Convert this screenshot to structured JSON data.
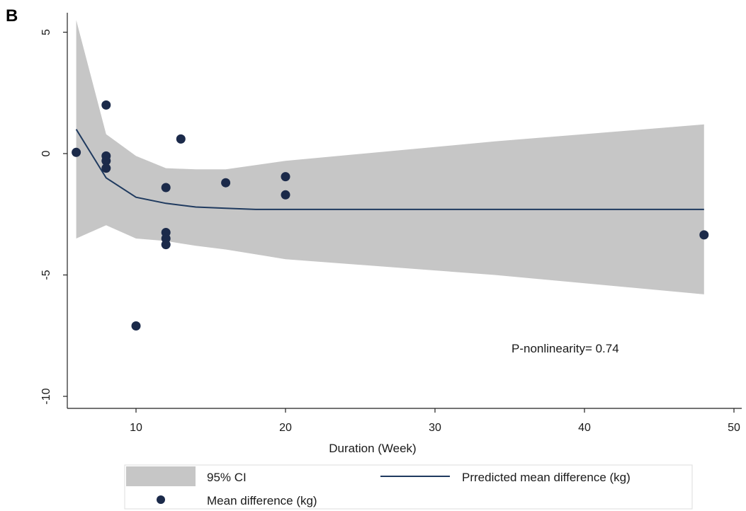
{
  "panel_label": "B",
  "chart_data": {
    "type": "line",
    "xlabel": "Duration (Week)",
    "ylabel": "",
    "xlim": [
      5,
      50
    ],
    "ylim": [
      -10.5,
      5.8
    ],
    "x_ticks": [
      10,
      20,
      30,
      40,
      50
    ],
    "y_ticks": [
      5,
      0,
      -5,
      -10
    ],
    "grid": false,
    "legend_position": "bottom",
    "ci_band": {
      "name": "95% CI",
      "color": "#c6c6c6",
      "x": [
        6,
        8,
        10,
        12,
        14,
        16,
        20,
        34,
        48
      ],
      "upper": [
        5.5,
        0.8,
        -0.1,
        -0.6,
        -0.65,
        -0.65,
        -0.3,
        0.5,
        1.2
      ],
      "lower": [
        -3.5,
        -2.95,
        -3.5,
        -3.6,
        -3.8,
        -3.95,
        -4.35,
        -5.0,
        -5.8
      ]
    },
    "predicted_line": {
      "name": "Prredicted mean difference (kg)",
      "color": "#1f3a5f",
      "x": [
        6,
        8,
        10,
        12,
        14,
        16,
        18,
        20,
        34,
        48
      ],
      "y": [
        1.0,
        -1.0,
        -1.8,
        -2.05,
        -2.2,
        -2.25,
        -2.3,
        -2.3,
        -2.3,
        -2.3
      ]
    },
    "observed_points": {
      "name": "Mean difference (kg)",
      "color": "#1b2a4a",
      "points": [
        {
          "x": 6,
          "y": 0.05
        },
        {
          "x": 8,
          "y": 2.0
        },
        {
          "x": 8,
          "y": -0.1
        },
        {
          "x": 8,
          "y": -0.3
        },
        {
          "x": 8,
          "y": -0.6
        },
        {
          "x": 10,
          "y": -7.1
        },
        {
          "x": 12,
          "y": -1.4
        },
        {
          "x": 12,
          "y": -3.25
        },
        {
          "x": 12,
          "y": -3.5
        },
        {
          "x": 12,
          "y": -3.75
        },
        {
          "x": 13,
          "y": 0.6
        },
        {
          "x": 16,
          "y": -1.2
        },
        {
          "x": 20,
          "y": -0.95
        },
        {
          "x": 20,
          "y": -1.7
        },
        {
          "x": 48,
          "y": -3.35
        }
      ]
    },
    "annotation": "P-nonlinearity=  0.74",
    "legend": {
      "ci_label": "95% CI",
      "line_label": "Prredicted mean difference (kg)",
      "points_label": "Mean difference (kg)"
    }
  }
}
